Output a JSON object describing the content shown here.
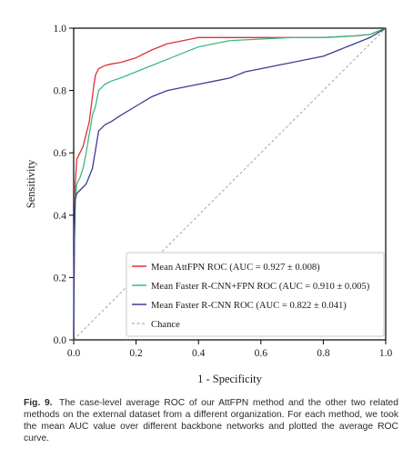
{
  "colors": {
    "attfpn": "#e03131",
    "faster_rcnn_fpn": "#3cb888",
    "faster_rcnn": "#3a3f8f",
    "chance": "#9a9a9a"
  },
  "chart_data": {
    "type": "line",
    "title": "",
    "xlabel": "1 - Specificity",
    "ylabel": "Sensitivity",
    "xlim": [
      0.0,
      1.0
    ],
    "ylim": [
      0.0,
      1.0
    ],
    "xticks": [
      "0.0",
      "0.2",
      "0.4",
      "0.6",
      "0.8",
      "1.0"
    ],
    "yticks": [
      "0.0",
      "0.2",
      "0.4",
      "0.6",
      "0.8",
      "1.0"
    ],
    "grid": false,
    "legend_position": "lower-right",
    "series": [
      {
        "name": "Mean AttFPN ROC (AUC = 0.927 ± 0.008)",
        "color": "#e03131",
        "style": "solid",
        "x": [
          0,
          0.002,
          0.005,
          0.01,
          0.02,
          0.03,
          0.04,
          0.05,
          0.06,
          0.065,
          0.07,
          0.08,
          0.1,
          0.12,
          0.15,
          0.2,
          0.25,
          0.3,
          0.35,
          0.4,
          0.5,
          0.6,
          0.7,
          0.8,
          0.9,
          0.95,
          1.0
        ],
        "y": [
          0,
          0.3,
          0.5,
          0.58,
          0.6,
          0.62,
          0.66,
          0.7,
          0.78,
          0.82,
          0.85,
          0.87,
          0.88,
          0.885,
          0.89,
          0.905,
          0.93,
          0.95,
          0.96,
          0.97,
          0.97,
          0.97,
          0.97,
          0.97,
          0.975,
          0.98,
          1.0
        ]
      },
      {
        "name": "Mean Faster R-CNN+FPN ROC (AUC = 0.910 ± 0.005)",
        "color": "#3cb888",
        "style": "solid",
        "x": [
          0,
          0.002,
          0.005,
          0.01,
          0.02,
          0.03,
          0.04,
          0.05,
          0.06,
          0.07,
          0.08,
          0.1,
          0.12,
          0.15,
          0.2,
          0.25,
          0.3,
          0.35,
          0.4,
          0.45,
          0.5,
          0.6,
          0.7,
          0.8,
          0.9,
          0.95,
          1.0
        ],
        "y": [
          0,
          0.35,
          0.45,
          0.5,
          0.52,
          0.55,
          0.6,
          0.66,
          0.72,
          0.75,
          0.8,
          0.82,
          0.83,
          0.84,
          0.86,
          0.88,
          0.9,
          0.92,
          0.94,
          0.95,
          0.96,
          0.965,
          0.97,
          0.97,
          0.975,
          0.98,
          1.0
        ]
      },
      {
        "name": "Mean Faster R-CNN ROC (AUC = 0.822 ± 0.041)",
        "color": "#3a3f8f",
        "style": "solid",
        "x": [
          0,
          0.002,
          0.005,
          0.01,
          0.02,
          0.04,
          0.06,
          0.08,
          0.1,
          0.12,
          0.15,
          0.2,
          0.25,
          0.3,
          0.35,
          0.4,
          0.45,
          0.5,
          0.55,
          0.6,
          0.65,
          0.7,
          0.75,
          0.8,
          0.85,
          0.9,
          0.95,
          1.0
        ],
        "y": [
          0,
          0.3,
          0.45,
          0.47,
          0.48,
          0.5,
          0.55,
          0.67,
          0.69,
          0.7,
          0.72,
          0.75,
          0.78,
          0.8,
          0.81,
          0.82,
          0.83,
          0.84,
          0.86,
          0.87,
          0.88,
          0.89,
          0.9,
          0.91,
          0.93,
          0.95,
          0.97,
          1.0
        ]
      },
      {
        "name": "Chance",
        "color": "#9a9a9a",
        "style": "dashed",
        "x": [
          0,
          1
        ],
        "y": [
          0,
          1
        ]
      }
    ]
  },
  "caption": {
    "label": "Fig. 9.",
    "text": "The case-level average ROC of our AttFPN method and the other two related methods on the external dataset from a different organization. For each method, we took the mean AUC value over different backbone networks and plotted the average ROC curve."
  }
}
